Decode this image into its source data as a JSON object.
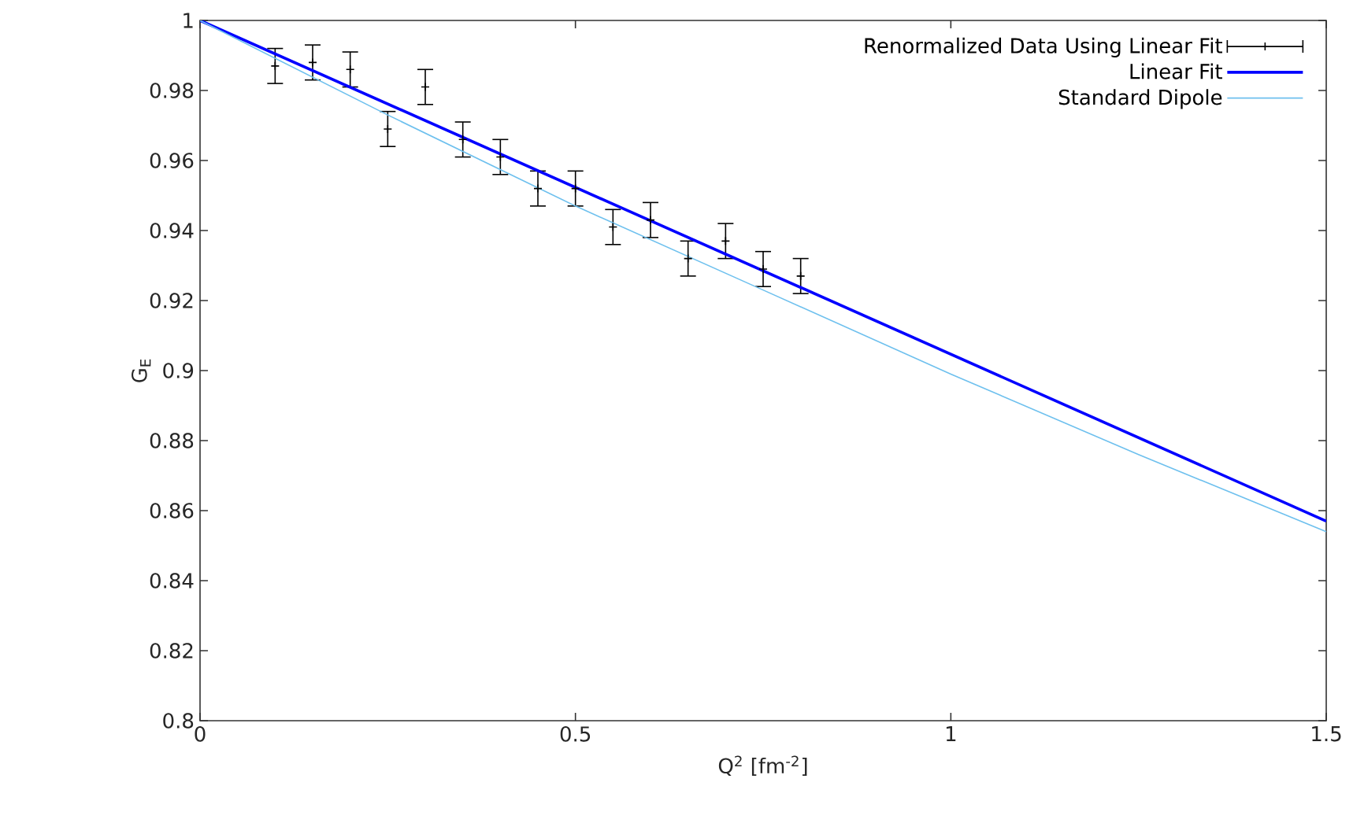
{
  "chart_data": {
    "type": "line",
    "xlabel": "Q$^{2}$ [fm$^{-2}$]",
    "ylabel": "G$_{E}$",
    "xlim": [
      0,
      1.5
    ],
    "ylim": [
      0.8,
      1
    ],
    "xticks": [
      0,
      0.5,
      1,
      1.5
    ],
    "yticks": [
      0.8,
      0.82,
      0.84,
      0.86,
      0.88,
      0.9,
      0.92,
      0.94,
      0.96,
      0.98,
      1
    ],
    "grid": false,
    "legend": "top right",
    "series": [
      {
        "name": "Renormalized Data Using Linear Fit",
        "type": "scatter",
        "marker": "cross",
        "color": "#000000",
        "x": [
          0.1,
          0.15,
          0.2,
          0.25,
          0.3,
          0.35,
          0.4,
          0.45,
          0.5,
          0.55,
          0.6,
          0.65,
          0.7,
          0.75,
          0.8
        ],
        "values": [
          0.987,
          0.988,
          0.986,
          0.969,
          0.981,
          0.966,
          0.961,
          0.952,
          0.952,
          0.941,
          0.943,
          0.932,
          0.937,
          0.929,
          0.927
        ],
        "errors": [
          0.005,
          0.005,
          0.005,
          0.005,
          0.005,
          0.005,
          0.005,
          0.005,
          0.005,
          0.005,
          0.005,
          0.005,
          0.005,
          0.005,
          0.005
        ]
      },
      {
        "name": "Linear Fit",
        "color": "#0000ff",
        "x": [
          0,
          1.5
        ],
        "values": [
          1,
          0.857
        ]
      },
      {
        "name": "Standard Dipole",
        "color": "#6ec0ee",
        "x": [
          0,
          0.25,
          0.5,
          0.75,
          1,
          1.25,
          1.5
        ],
        "values": [
          1,
          0.973,
          0.947,
          0.923,
          0.899,
          0.876,
          0.854
        ]
      }
    ]
  }
}
